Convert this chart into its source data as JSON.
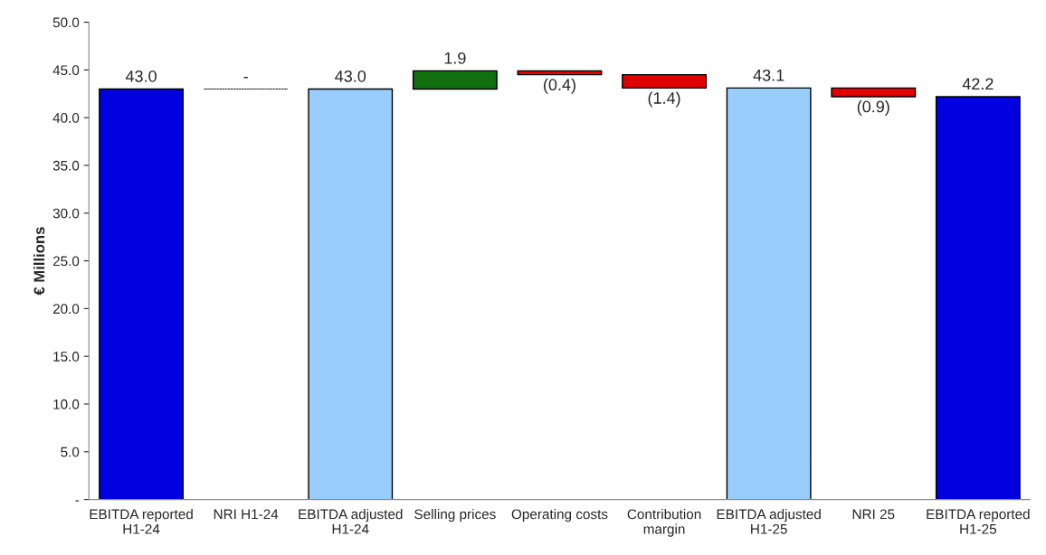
{
  "chart_data": {
    "type": "bar",
    "categories": [
      "EBITDA reported\nH1-24",
      "NRI H1-24",
      "EBITDA adjusted\nH1-24",
      "Selling prices",
      "Operating costs",
      "Contribution\nmargin",
      "EBITDA adjusted\nH1-25",
      "NRI 25",
      "EBITDA reported\nH1-25"
    ],
    "values": [
      43.0,
      0,
      43.0,
      1.9,
      -0.4,
      -1.4,
      43.1,
      -0.9,
      42.2
    ],
    "base": [
      0,
      43.0,
      0,
      43.0,
      44.9,
      44.5,
      0,
      43.1,
      0
    ],
    "colors": [
      "#0000e0",
      "#000000",
      "#99ccff",
      "#107010",
      "#e00000",
      "#e00000",
      "#99ccff",
      "#e00000",
      "#0000e0"
    ],
    "value_labels": [
      "43.0",
      "-",
      "43.0",
      "1.9",
      "(0.4)",
      "(1.4)",
      "43.1",
      "(0.9)",
      "42.2"
    ],
    "ylabel": "€ Millions",
    "ylim": [
      0,
      50
    ],
    "yticks": [
      {
        "value": 0,
        "label": "-"
      },
      {
        "value": 5,
        "label": "5.0"
      },
      {
        "value": 10,
        "label": "10.0"
      },
      {
        "value": 15,
        "label": "15.0"
      },
      {
        "value": 20,
        "label": "20.0"
      },
      {
        "value": 25,
        "label": "25.0"
      },
      {
        "value": 30,
        "label": "30.0"
      },
      {
        "value": 35,
        "label": "35.0"
      },
      {
        "value": 40,
        "label": "40.0"
      },
      {
        "value": 45,
        "label": "45.0"
      },
      {
        "value": 50,
        "label": "50.0"
      }
    ],
    "grid": false,
    "legend": false
  }
}
